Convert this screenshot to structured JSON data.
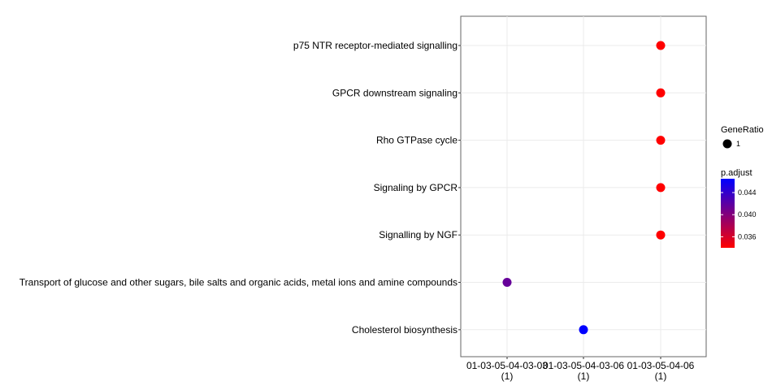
{
  "chart_data": {
    "type": "scatter",
    "title": "",
    "xlabel": "",
    "ylabel": "",
    "categories_x": [
      {
        "label": "01-03-05-04-03-03",
        "count": "(1)"
      },
      {
        "label": "01-03-05-04-03-06",
        "count": "(1)"
      },
      {
        "label": "01-03-05-04-06",
        "count": "(1)"
      }
    ],
    "categories_y": [
      "p75 NTR receptor-mediated signalling",
      "GPCR downstream signaling",
      "Rho GTPase cycle",
      "Signaling by GPCR",
      "Signalling by NGF",
      "Transport of glucose and other sugars, bile salts and organic acids, metal ions and amine compounds",
      "Cholesterol biosynthesis"
    ],
    "points": [
      {
        "x": "01-03-05-04-06",
        "y": "p75 NTR receptor-mediated signalling",
        "gene_ratio": 1,
        "p_adjust": 0.034
      },
      {
        "x": "01-03-05-04-06",
        "y": "GPCR downstream signaling",
        "gene_ratio": 1,
        "p_adjust": 0.034
      },
      {
        "x": "01-03-05-04-06",
        "y": "Rho GTPase cycle",
        "gene_ratio": 1,
        "p_adjust": 0.034
      },
      {
        "x": "01-03-05-04-06",
        "y": "Signaling by GPCR",
        "gene_ratio": 1,
        "p_adjust": 0.034
      },
      {
        "x": "01-03-05-04-06",
        "y": "Signalling by NGF",
        "gene_ratio": 1,
        "p_adjust": 0.034
      },
      {
        "x": "01-03-05-04-03-03",
        "y": "Transport of glucose and other sugars, bile salts and organic acids, metal ions and amine compounds",
        "gene_ratio": 1,
        "p_adjust": 0.0415
      },
      {
        "x": "01-03-05-04-03-06",
        "y": "Cholesterol biosynthesis",
        "gene_ratio": 1,
        "p_adjust": 0.0465
      }
    ],
    "size_legend": {
      "title": "GeneRatio",
      "values": [
        1
      ]
    },
    "color_legend": {
      "title": "p.adjust",
      "range": [
        0.034,
        0.0465
      ],
      "ticks": [
        0.036,
        0.04,
        0.044
      ],
      "tick_labels": [
        "0.036",
        "0.040",
        "0.044"
      ],
      "low_color": "#ff0000",
      "high_color": "#0000ff"
    },
    "grid": true,
    "legend_position": "right"
  }
}
